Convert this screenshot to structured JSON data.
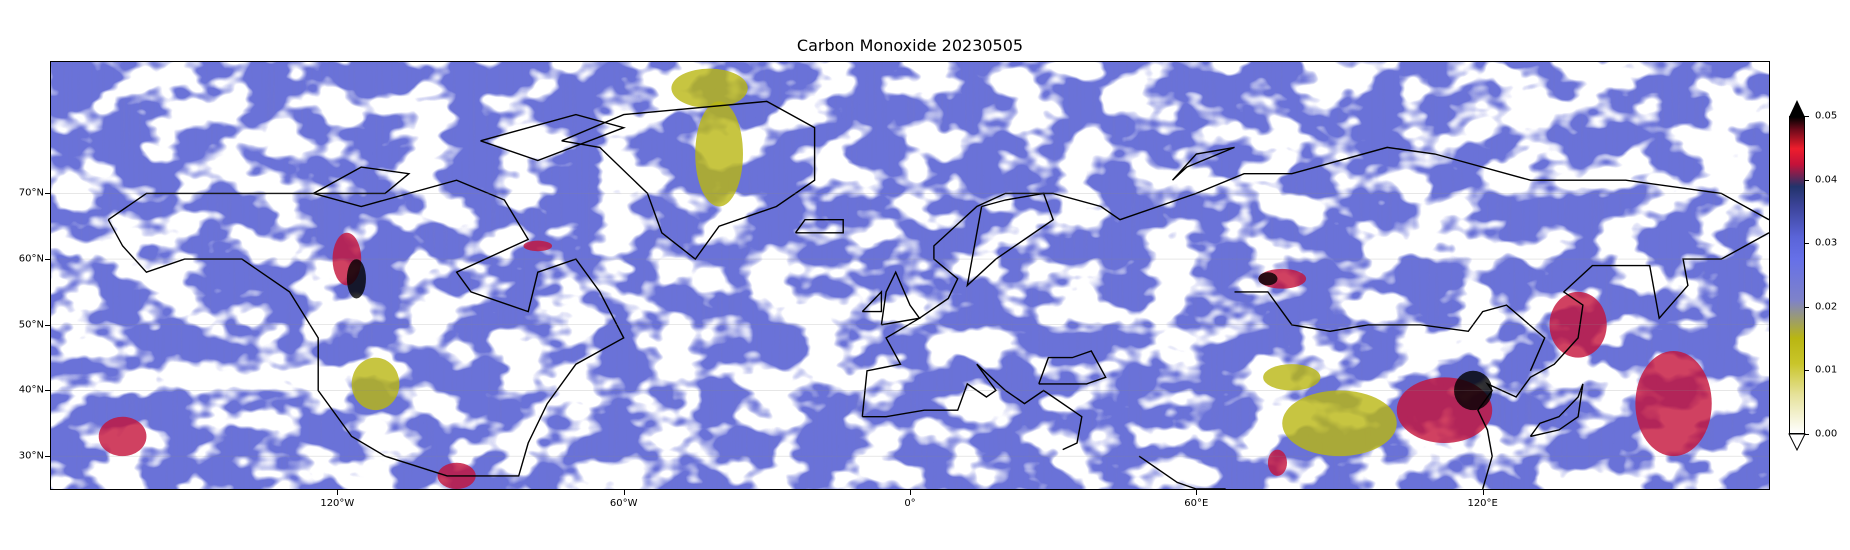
{
  "title": "Carbon Monoxide 20230505",
  "map": {
    "projection": "PlateCarree",
    "extent_lon": [
      -180,
      180
    ],
    "extent_lat": [
      25,
      90
    ],
    "lat_labels": [
      "70°N",
      "60°N",
      "50°N",
      "40°N",
      "30°N"
    ],
    "lat_values": [
      70,
      60,
      50,
      40,
      30
    ],
    "lon_labels": [
      "120°W",
      "60°W",
      "0°",
      "60°E",
      "120°E"
    ],
    "lon_values": [
      -120,
      -60,
      0,
      60,
      120
    ],
    "ocean_field_color": "#6a72d8",
    "cloud_mask_color": "#ffffff",
    "coastline_color": "#000000"
  },
  "colorbar": {
    "min": 0.0,
    "max": 0.05,
    "extend": "both",
    "tick_labels": [
      "0.05",
      "0.04",
      "0.03",
      "0.02",
      "0.01",
      "0.00"
    ],
    "tick_values": [
      0.05,
      0.04,
      0.03,
      0.02,
      0.01,
      0.0
    ],
    "colors": [
      "#ffffff",
      "#c9c52a",
      "#6670e8",
      "#22336b",
      "#ee1d2c",
      "#000000"
    ]
  }
}
